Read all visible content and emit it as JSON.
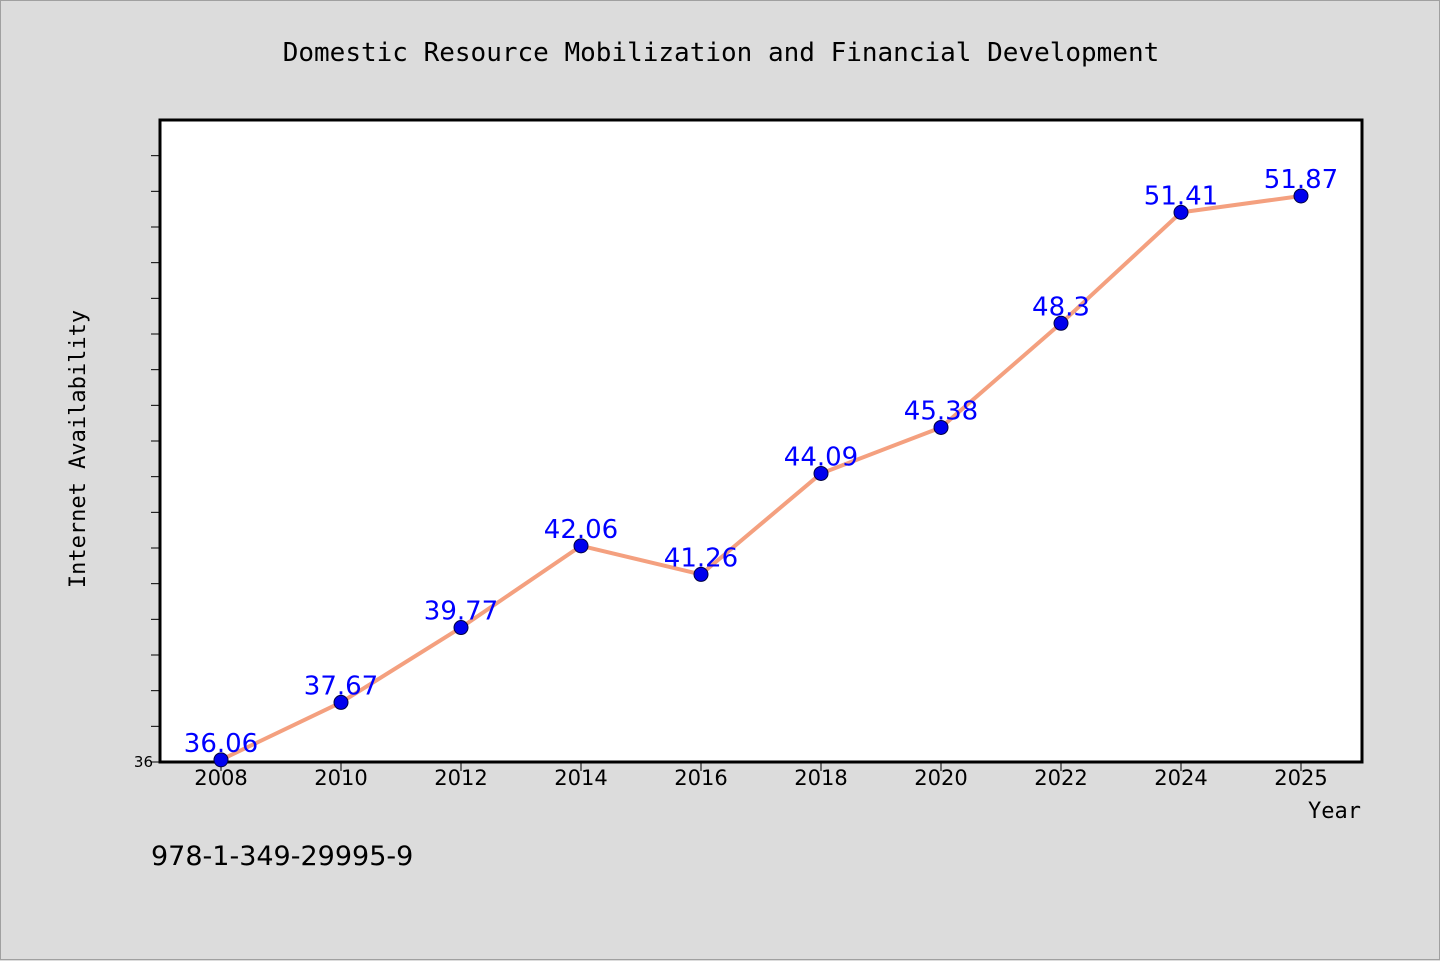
{
  "chart_data": {
    "type": "line",
    "title": "Domestic Resource Mobilization and Financial Development",
    "xlabel": "Year",
    "ylabel": "Internet Availability",
    "x": [
      "2008",
      "2010",
      "2012",
      "2014",
      "2016",
      "2018",
      "2020",
      "2022",
      "2024",
      "2025"
    ],
    "series": [
      {
        "values": [
          36.06,
          37.67,
          39.77,
          42.06,
          41.26,
          44.09,
          45.38,
          48.3,
          51.41,
          51.87
        ]
      }
    ],
    "data_labels": [
      "36.06",
      "37.67",
      "39.77",
      "42.06",
      "41.26",
      "44.09",
      "45.38",
      "48.3",
      "51.41",
      "51.87"
    ],
    "y_tick_label": "36",
    "ylim": [
      36,
      54
    ],
    "y_minor_tick_step": 1,
    "grid": false,
    "line_color": "#f4a07f",
    "marker_color": "#0000ee",
    "label_color": "#0000ff",
    "plot_background": "#ffffff",
    "figure_background": "#dcdcdc"
  },
  "footer": {
    "isbn": "978-1-349-29995-9"
  }
}
